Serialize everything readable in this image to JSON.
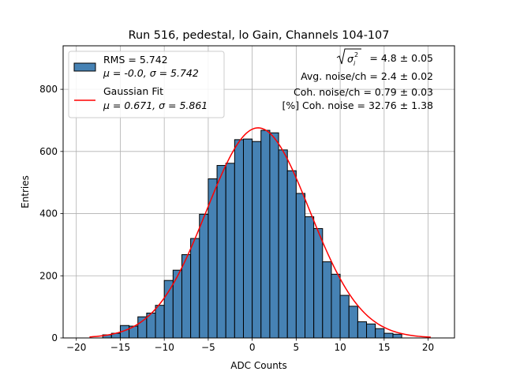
{
  "chart_data": {
    "type": "bar",
    "title": "Run 516, pedestal, lo Gain, Channels 104-107",
    "xlabel": "ADC Counts",
    "ylabel": "Entries",
    "xlim": [
      -21.5,
      23.0
    ],
    "ylim": [
      0,
      940
    ],
    "grid": true,
    "xticks": [
      -20,
      -15,
      -10,
      -5,
      0,
      5,
      10,
      15,
      20
    ],
    "yticks": [
      0,
      200,
      400,
      600,
      800
    ],
    "bar_color": "#4682b4",
    "fit_color": "#ff0000",
    "bin_start": -17,
    "bin_width": 1,
    "values": [
      10,
      15,
      40,
      38,
      68,
      80,
      105,
      185,
      218,
      268,
      320,
      398,
      512,
      555,
      562,
      638,
      640,
      632,
      668,
      660,
      605,
      538,
      465,
      390,
      352,
      245,
      205,
      137,
      102,
      52,
      45,
      30,
      15,
      12
    ],
    "fit": {
      "mu": 0.671,
      "sigma": 5.861,
      "amplitude": 676,
      "x_range": [
        -18.5,
        20.3
      ]
    },
    "legend": {
      "position": "upper left",
      "histogram_rms": "RMS = 5.742",
      "histogram_stats": "μ = -0.0, σ = 5.742",
      "fit_name": "Gaussian Fit",
      "fit_stats": "μ = 0.671, σ = 5.861"
    },
    "annotations": {
      "sigma_value": "= 4.8 ± 0.05",
      "avg_noise": "Avg. noise/ch = 2.4 ± 0.02",
      "coh_noise": "Coh. noise/ch = 0.79 ± 0.03",
      "coh_noise_pct": "[%] Coh. noise = 32.76 ± 1.38"
    }
  }
}
